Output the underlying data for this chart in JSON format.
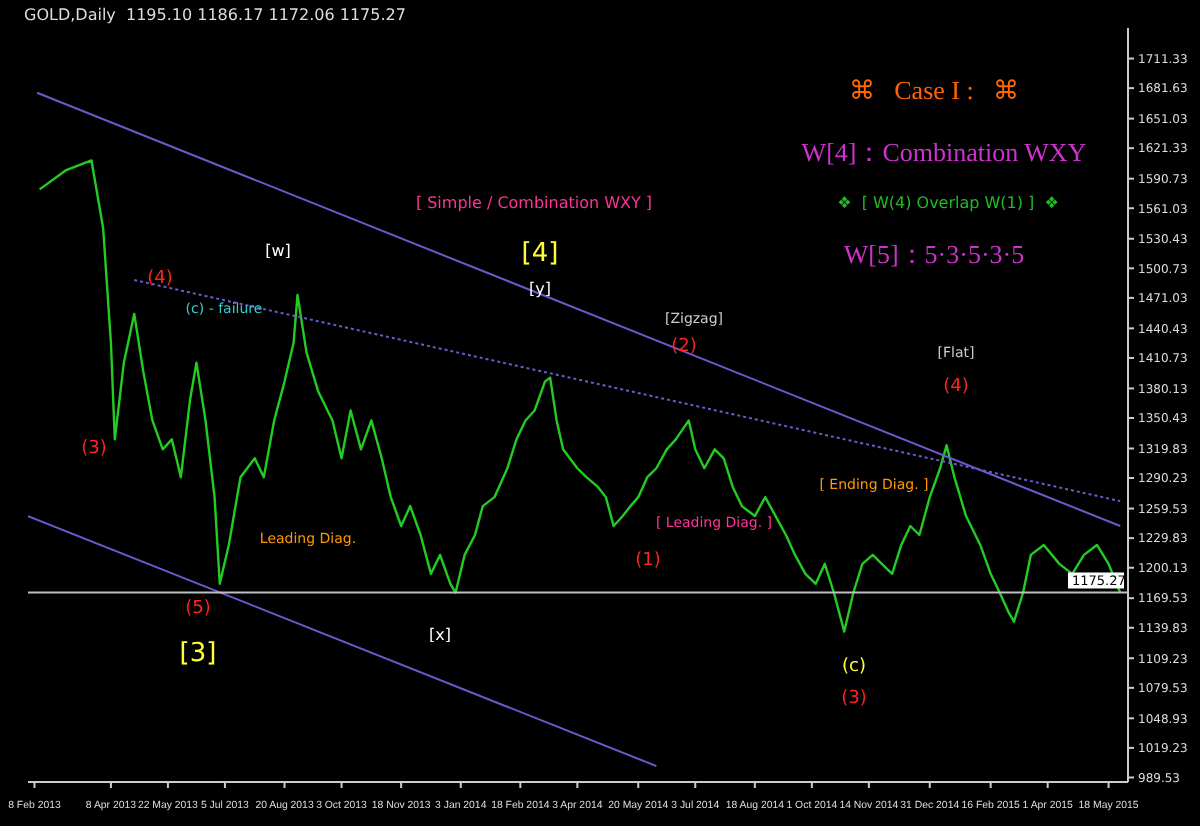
{
  "chart_data": {
    "type": "line",
    "title": "GOLD,Daily  1195.10 1186.17 1172.06 1175.27",
    "x": [
      "2013-02-12",
      "2013-03-04",
      "2013-03-24",
      "2013-04-02",
      "2013-04-08",
      "2013-04-11",
      "2013-04-18",
      "2013-04-26",
      "2013-05-03",
      "2013-05-10",
      "2013-05-18",
      "2013-05-25",
      "2013-06-01",
      "2013-06-08",
      "2013-06-13",
      "2013-06-20",
      "2013-06-27",
      "2013-07-01",
      "2013-07-08",
      "2013-07-17",
      "2013-07-28",
      "2013-08-04",
      "2013-08-12",
      "2013-08-20",
      "2013-08-27",
      "2013-08-30",
      "2013-09-06",
      "2013-09-15",
      "2013-09-26",
      "2013-10-03",
      "2013-10-10",
      "2013-10-18",
      "2013-10-26",
      "2013-11-03",
      "2013-11-10",
      "2013-11-18",
      "2013-11-25",
      "2013-12-03",
      "2013-12-11",
      "2013-12-18",
      "2013-12-26",
      "2013-12-30",
      "2014-01-06",
      "2014-01-14",
      "2014-01-20",
      "2014-01-29",
      "2014-02-08",
      "2014-02-15",
      "2014-02-22",
      "2014-03-01",
      "2014-03-09",
      "2014-03-13",
      "2014-03-18",
      "2014-03-23",
      "2014-04-03",
      "2014-04-10",
      "2014-04-19",
      "2014-04-25",
      "2014-05-01",
      "2014-05-08",
      "2014-05-14",
      "2014-05-20",
      "2014-05-27",
      "2014-06-03",
      "2014-06-11",
      "2014-06-18",
      "2014-06-28",
      "2014-07-03",
      "2014-07-10",
      "2014-07-18",
      "2014-07-25",
      "2014-08-01",
      "2014-08-08",
      "2014-08-18",
      "2014-08-26",
      "2014-09-03",
      "2014-09-11",
      "2014-09-18",
      "2014-09-26",
      "2014-10-04",
      "2014-10-11",
      "2014-10-18",
      "2014-10-26",
      "2014-11-02",
      "2014-11-09",
      "2014-11-17",
      "2014-11-24",
      "2014-12-02",
      "2014-12-09",
      "2014-12-16",
      "2014-12-23",
      "2014-12-31",
      "2015-01-08",
      "2015-01-13",
      "2015-01-19",
      "2015-01-28",
      "2015-02-08",
      "2015-02-16",
      "2015-02-23",
      "2015-03-02",
      "2015-03-06",
      "2015-03-13",
      "2015-03-19",
      "2015-03-29",
      "2015-04-10",
      "2015-04-20",
      "2015-04-29",
      "2015-05-09",
      "2015-05-18",
      "2015-05-27"
    ],
    "series": [
      {
        "color": "#22cc22",
        "values": [
          1580,
          1599,
          1609,
          1541,
          1426,
          1329,
          1406,
          1455,
          1397,
          1348,
          1319,
          1329,
          1291,
          1368,
          1406,
          1348,
          1271,
          1184,
          1223,
          1291,
          1310,
          1291,
          1348,
          1387,
          1426,
          1474,
          1416,
          1377,
          1348,
          1310,
          1358,
          1319,
          1348,
          1310,
          1271,
          1242,
          1262,
          1233,
          1194,
          1213,
          1184,
          1175,
          1213,
          1233,
          1262,
          1271,
          1300,
          1329,
          1348,
          1358,
          1387,
          1391,
          1348,
          1319,
          1300,
          1291,
          1281,
          1271,
          1242,
          1252,
          1262,
          1271,
          1291,
          1300,
          1319,
          1329,
          1348,
          1319,
          1300,
          1319,
          1310,
          1281,
          1262,
          1252,
          1271,
          1252,
          1233,
          1213,
          1194,
          1184,
          1204,
          1175,
          1136,
          1175,
          1204,
          1213,
          1204,
          1194,
          1223,
          1242,
          1233,
          1271,
          1300,
          1323,
          1291,
          1252,
          1223,
          1194,
          1175,
          1155,
          1146,
          1175,
          1213,
          1223,
          1204,
          1194,
          1213,
          1223,
          1204,
          1175
        ]
      },
      {
        "type": "line",
        "color": "#6a5acd",
        "x": [
          "2013-02-10",
          "2015-05-27"
        ],
        "values": [
          1677,
          1242
        ]
      },
      {
        "type": "line",
        "color": "#6a5acd",
        "line_style": "dotted",
        "x": [
          "2013-04-26",
          "2015-05-27"
        ],
        "values": [
          1489,
          1267
        ]
      },
      {
        "type": "line",
        "color": "#6a5acd",
        "x": [
          "2013-02-03",
          "2014-06-03"
        ],
        "values": [
          1252,
          1001
        ]
      }
    ],
    "xlim": [
      "2013-02-03",
      "2015-06-02"
    ],
    "xticks": [
      {
        "value": "2013-02-08",
        "label": "8 Feb 2013"
      },
      {
        "value": "2013-04-08",
        "label": "8 Apr 2013"
      },
      {
        "value": "2013-05-22",
        "label": "22 May 2013"
      },
      {
        "value": "2013-07-05",
        "label": "5 Jul 2013"
      },
      {
        "value": "2013-08-20",
        "label": "20 Aug 2013"
      },
      {
        "value": "2013-10-03",
        "label": "3 Oct 2013"
      },
      {
        "value": "2013-11-18",
        "label": "18 Nov 2013"
      },
      {
        "value": "2014-01-03",
        "label": "3 Jan 2014"
      },
      {
        "value": "2014-02-18",
        "label": "18 Feb 2014"
      },
      {
        "value": "2014-04-03",
        "label": "3 Apr 2014"
      },
      {
        "value": "2014-05-20",
        "label": "20 May 2014"
      },
      {
        "value": "2014-07-03",
        "label": "3 Jul 2014"
      },
      {
        "value": "2014-08-18",
        "label": "18 Aug 2014"
      },
      {
        "value": "2014-10-01",
        "label": "1 Oct 2014"
      },
      {
        "value": "2014-11-14",
        "label": "14 Nov 2014"
      },
      {
        "value": "2014-12-31",
        "label": "31 Dec 2014"
      },
      {
        "value": "2015-02-16",
        "label": "16 Feb 2015"
      },
      {
        "value": "2015-04-01",
        "label": "1 Apr 2015"
      },
      {
        "value": "2015-05-18",
        "label": "18 May 2015"
      }
    ],
    "ylim": [
      985,
      1742
    ],
    "yticks": [
      989.53,
      1019.23,
      1048.93,
      1079.53,
      1109.23,
      1139.83,
      1169.53,
      1200.13,
      1229.83,
      1259.53,
      1290.23,
      1319.83,
      1350.43,
      1380.13,
      1410.73,
      1440.43,
      1471.03,
      1500.73,
      1530.43,
      1561.03,
      1590.73,
      1621.33,
      1651.03,
      1681.63,
      1711.33
    ],
    "ref_lines": [
      {
        "axis": "y",
        "value": 1175.27,
        "label": "1175.27",
        "color": "#c0c0c0"
      }
    ],
    "grid": false,
    "legend": false,
    "marker": "none",
    "annotations": [
      "⌘   Case I :   ⌘",
      "W[4]：Combination WXY",
      "❖  [ W(4) Overlap W(1) ]  ❖",
      "W[5]：5·3·5·3·5",
      "[ Simple / Combination WXY ]",
      "(4)",
      "(c) - failure",
      "(3)",
      "(5)",
      "[3]",
      "[w]",
      "[4]",
      "[y]",
      "[x]",
      "[Zigzag]",
      "(2)",
      "(1)",
      "Leading Diag.",
      "[ Leading Diag. ]",
      "[ Ending Diag. ]",
      "[Flat]",
      "(4)",
      "(c)",
      "(3)"
    ]
  }
}
